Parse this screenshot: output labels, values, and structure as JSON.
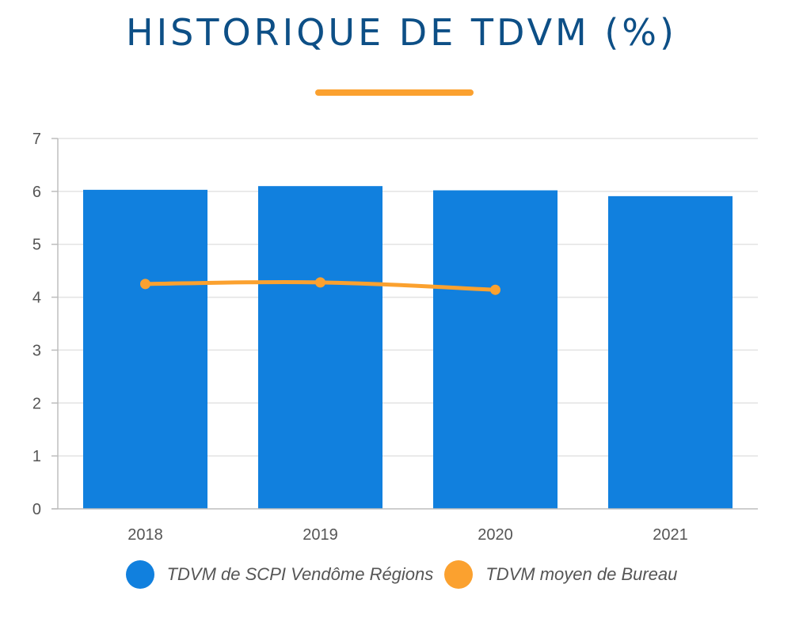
{
  "title": "HISTORIQUE DE TDVM (%)",
  "colors": {
    "title": "#0d4f86",
    "accent": "#fba12f",
    "bar": "#1180de",
    "grid": "#e3e3e3",
    "axis": "#bdbdbd"
  },
  "chart_data": {
    "type": "bar",
    "categories": [
      "2018",
      "2019",
      "2020",
      "2021"
    ],
    "series": [
      {
        "name": "TDVM de SCPI Vendôme Régions",
        "type": "bar",
        "values": [
          6.03,
          6.1,
          6.02,
          5.91
        ]
      },
      {
        "name": "TDVM moyen de Bureau",
        "type": "line",
        "values": [
          4.25,
          4.28,
          4.14,
          null
        ]
      }
    ],
    "ylim": [
      0,
      7
    ],
    "yticks": [
      "0",
      "1",
      "2",
      "3",
      "4",
      "5",
      "6",
      "7"
    ],
    "grid": true,
    "legend_position": "bottom"
  }
}
